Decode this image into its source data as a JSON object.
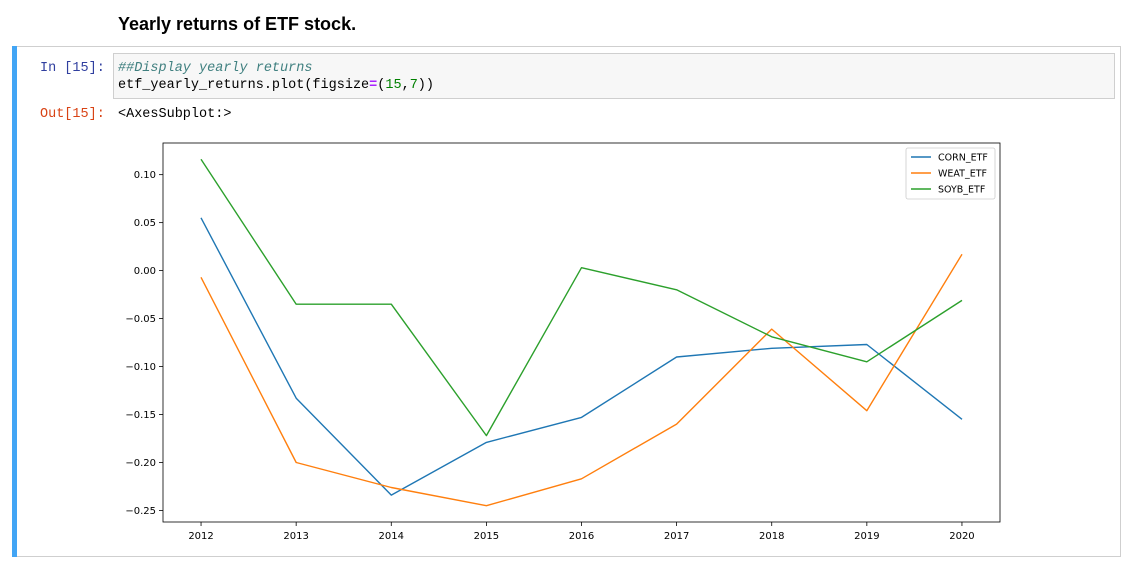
{
  "heading": "Yearly returns of ETF stock.",
  "cell": {
    "in_prompt": "In [15]:",
    "code_comment": "##Display yearly returns",
    "code_prefix": "etf_yearly_returns.plot(figsize",
    "code_eq": "=",
    "code_paren_open": "(",
    "code_num1": "15",
    "code_comma": ",",
    "code_num2": "7",
    "code_suffix": "))",
    "out_prompt": "Out[15]:",
    "output_text": "<AxesSubplot:>",
    "accent_color": "#42a5f5"
  },
  "chart_data": {
    "type": "line",
    "title": "",
    "xlabel": "",
    "ylabel": "",
    "x": [
      2012,
      2013,
      2014,
      2015,
      2016,
      2017,
      2018,
      2019,
      2020
    ],
    "xlim": [
      2011.6,
      2020.4
    ],
    "ylim": [
      -0.262,
      0.133
    ],
    "yticks": [
      0.1,
      0.05,
      0.0,
      -0.05,
      -0.1,
      -0.15,
      -0.2,
      -0.25
    ],
    "ytick_labels": [
      "0.10",
      "0.05",
      "0.00",
      "−0.05",
      "−0.10",
      "−0.15",
      "−0.20",
      "−0.25"
    ],
    "xtick_labels": [
      "2012",
      "2013",
      "2014",
      "2015",
      "2016",
      "2017",
      "2018",
      "2019",
      "2020"
    ],
    "grid": false,
    "legend_position": "top-right",
    "series": [
      {
        "name": "CORN_ETF",
        "color": "#1f77b4",
        "values": [
          0.055,
          -0.133,
          -0.234,
          -0.179,
          -0.153,
          -0.09,
          -0.081,
          -0.077,
          -0.155
        ]
      },
      {
        "name": "WEAT_ETF",
        "color": "#ff7f0e",
        "values": [
          -0.007,
          -0.2,
          -0.226,
          -0.245,
          -0.217,
          -0.16,
          -0.061,
          -0.146,
          0.017
        ]
      },
      {
        "name": "SOYB_ETF",
        "color": "#2ca02c",
        "values": [
          0.116,
          -0.035,
          -0.035,
          -0.172,
          0.003,
          -0.02,
          -0.069,
          -0.095,
          -0.031
        ]
      }
    ]
  }
}
